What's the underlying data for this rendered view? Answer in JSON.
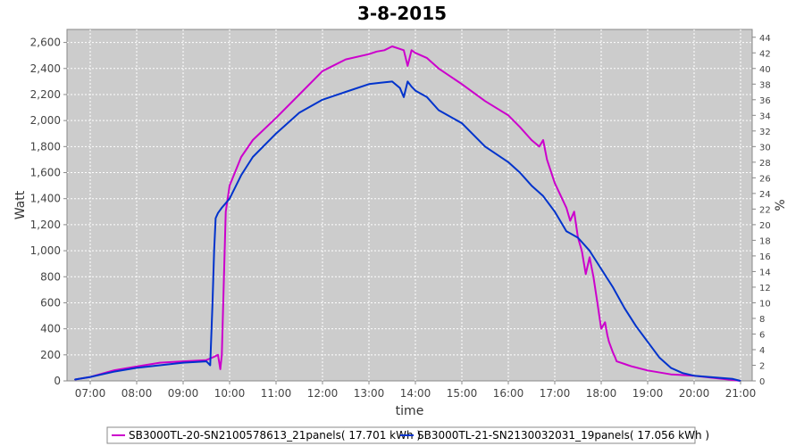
{
  "chart_data": {
    "type": "line",
    "title": "3-8-2015",
    "xlabel": "time",
    "ylabel": "Watt",
    "y2label": "%",
    "x_ticks": [
      "07:00",
      "08:00",
      "09:00",
      "10:00",
      "11:00",
      "12:00",
      "13:00",
      "14:00",
      "15:00",
      "16:00",
      "17:00",
      "18:00",
      "19:00",
      "20:00",
      "21:00"
    ],
    "x_range": [
      "06:30",
      "21:15"
    ],
    "ylim": [
      0,
      2700
    ],
    "y_ticks": [
      "0",
      "200",
      "400",
      "600",
      "800",
      "1,000",
      "1,200",
      "1,400",
      "1,600",
      "1,800",
      "2,000",
      "2,200",
      "2,400",
      "2,600"
    ],
    "y2lim": [
      0,
      45
    ],
    "y2_ticks": [
      "0",
      "2",
      "4",
      "6",
      "8",
      "10",
      "12",
      "14",
      "16",
      "18",
      "20",
      "22",
      "24",
      "26",
      "28",
      "30",
      "32",
      "34",
      "36",
      "38",
      "40",
      "42",
      "44"
    ],
    "grid": true,
    "legend_position": "bottom",
    "series": [
      {
        "name": "SB3000TL-20-SN2100578613_21panels( 17.701 kWh )",
        "color": "#cc00cc",
        "x": [
          "06:40",
          "07:00",
          "07:30",
          "08:00",
          "08:30",
          "09:00",
          "09:30",
          "09:40",
          "09:45",
          "09:48",
          "09:50",
          "09:55",
          "10:00",
          "10:15",
          "10:30",
          "11:00",
          "11:30",
          "12:00",
          "12:30",
          "13:00",
          "13:10",
          "13:20",
          "13:30",
          "13:45",
          "13:50",
          "13:55",
          "14:00",
          "14:15",
          "14:30",
          "15:00",
          "15:30",
          "16:00",
          "16:15",
          "16:30",
          "16:40",
          "16:45",
          "16:50",
          "17:00",
          "17:15",
          "17:20",
          "17:25",
          "17:30",
          "17:35",
          "17:40",
          "17:45",
          "17:50",
          "17:55",
          "18:00",
          "18:05",
          "18:08",
          "18:10",
          "18:15",
          "18:18",
          "18:20",
          "18:25",
          "18:30",
          "18:35",
          "18:40",
          "19:00",
          "19:30",
          "20:00",
          "20:30",
          "21:00"
        ],
        "values": [
          10,
          30,
          80,
          110,
          140,
          150,
          160,
          185,
          200,
          90,
          200,
          1300,
          1500,
          1720,
          1850,
          2020,
          2200,
          2380,
          2470,
          2510,
          2530,
          2540,
          2570,
          2540,
          2420,
          2540,
          2520,
          2480,
          2400,
          2280,
          2150,
          2040,
          1950,
          1850,
          1800,
          1850,
          1700,
          1520,
          1330,
          1230,
          1300,
          1100,
          1000,
          820,
          950,
          800,
          600,
          400,
          450,
          350,
          300,
          220,
          180,
          150,
          140,
          130,
          120,
          110,
          80,
          50,
          40,
          20,
          0
        ]
      },
      {
        "name": "SB3000TL-21-SN2130032031_19panels( 17.056 kWh )",
        "color": "#0033cc",
        "x": [
          "06:40",
          "07:00",
          "07:30",
          "08:00",
          "08:30",
          "09:00",
          "09:30",
          "09:35",
          "09:38",
          "09:40",
          "09:42",
          "09:45",
          "09:50",
          "10:00",
          "10:15",
          "10:30",
          "11:00",
          "11:30",
          "12:00",
          "12:30",
          "13:00",
          "13:15",
          "13:30",
          "13:40",
          "13:45",
          "13:50",
          "13:55",
          "14:00",
          "14:15",
          "14:30",
          "15:00",
          "15:30",
          "16:00",
          "16:15",
          "16:30",
          "16:45",
          "17:00",
          "17:15",
          "17:30",
          "17:45",
          "18:00",
          "18:15",
          "18:30",
          "18:45",
          "19:00",
          "19:15",
          "19:30",
          "19:45",
          "20:00",
          "20:30",
          "20:50",
          "21:00"
        ],
        "values": [
          10,
          30,
          70,
          100,
          120,
          140,
          150,
          120,
          600,
          1000,
          1250,
          1290,
          1330,
          1400,
          1580,
          1720,
          1900,
          2060,
          2160,
          2220,
          2280,
          2290,
          2300,
          2250,
          2180,
          2300,
          2260,
          2230,
          2180,
          2080,
          1980,
          1800,
          1680,
          1600,
          1500,
          1420,
          1300,
          1150,
          1100,
          1000,
          860,
          720,
          560,
          420,
          300,
          180,
          100,
          60,
          40,
          25,
          15,
          0
        ]
      }
    ]
  }
}
